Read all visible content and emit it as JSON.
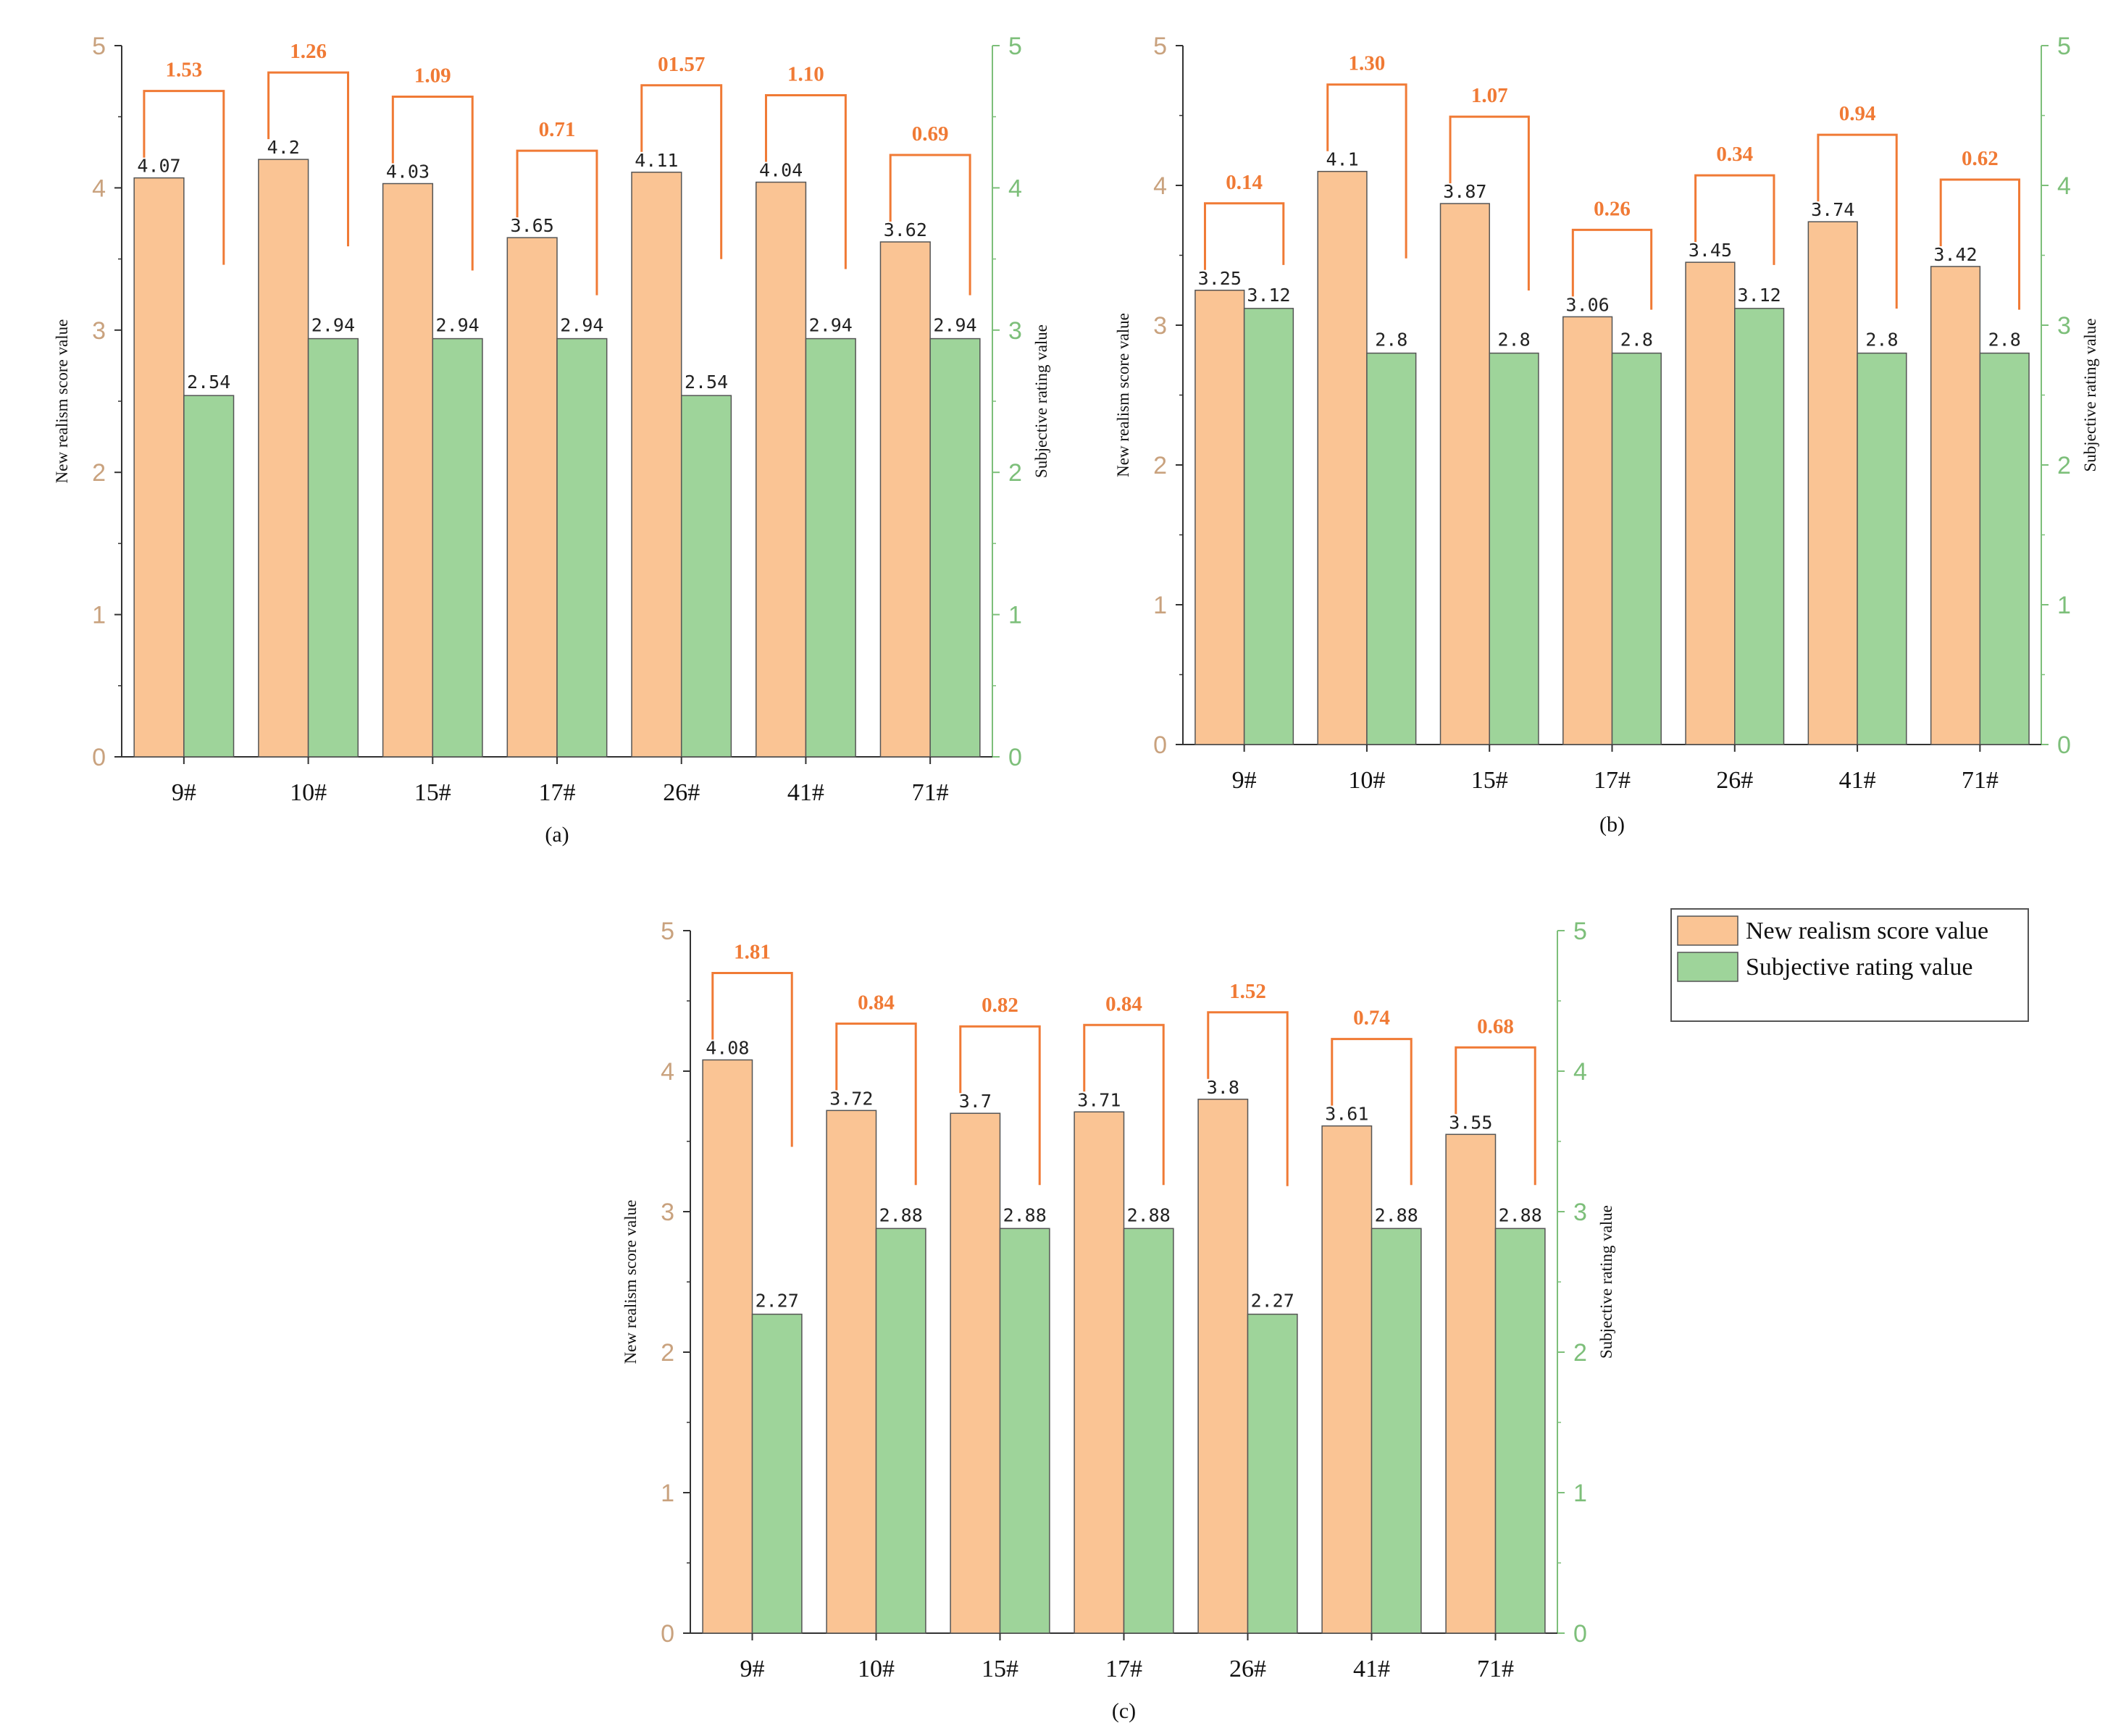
{
  "colors": {
    "realism_fill": "#FAC494",
    "subjective_fill": "#9ED49A",
    "bar_stroke": "#555555",
    "left_axis": "#C9A27E",
    "right_axis": "#7DBF7A",
    "bracket": "#F07A35",
    "axis_line": "#333333"
  },
  "legend": {
    "items": [
      {
        "label": "New realism score value"
      },
      {
        "label": "Subjective rating value"
      }
    ]
  },
  "chart_data": [
    {
      "type": "bar",
      "caption": "(a)",
      "categories": [
        "9#",
        "10#",
        "15#",
        "17#",
        "26#",
        "41#",
        "71#"
      ],
      "series": [
        {
          "name": "New realism score value",
          "values": [
            4.07,
            4.2,
            4.03,
            3.65,
            4.11,
            4.04,
            3.62
          ],
          "labels": [
            "4.07",
            "4.2",
            "4.03",
            "3.65",
            "4.11",
            "4.04",
            "3.62"
          ]
        },
        {
          "name": "Subjective rating value",
          "values": [
            2.54,
            2.94,
            2.94,
            2.94,
            2.54,
            2.94,
            2.94
          ],
          "labels": [
            "2.54",
            "2.94",
            "2.94",
            "2.94",
            "2.54",
            "2.94",
            "2.94"
          ]
        }
      ],
      "differences": [
        "1.53",
        "1.26",
        "1.09",
        "0.71",
        "01.57",
        "1.10",
        "0.69"
      ],
      "ylabel_left": "New realism score value",
      "ylabel_right": "Subjective rating value",
      "ylim": [
        0,
        5
      ],
      "yticks": [
        "0",
        "1",
        "2",
        "3",
        "4",
        "5"
      ]
    },
    {
      "type": "bar",
      "caption": "(b)",
      "categories": [
        "9#",
        "10#",
        "15#",
        "17#",
        "26#",
        "41#",
        "71#"
      ],
      "series": [
        {
          "name": "New realism score value",
          "values": [
            3.25,
            4.1,
            3.87,
            3.06,
            3.45,
            3.74,
            3.42
          ],
          "labels": [
            "3.25",
            "4.1",
            "3.87",
            "3.06",
            "3.45",
            "3.74",
            "3.42"
          ]
        },
        {
          "name": "Subjective rating value",
          "values": [
            3.12,
            2.8,
            2.8,
            2.8,
            3.12,
            2.8,
            2.8
          ],
          "labels": [
            "3.12",
            "2.8",
            "2.8",
            "2.8",
            "3.12",
            "2.8",
            "2.8"
          ]
        }
      ],
      "differences": [
        "0.14",
        "1.30",
        "1.07",
        "0.26",
        "0.34",
        "0.94",
        "0.62"
      ],
      "ylabel_left": "New realism score value",
      "ylabel_right": "Subjective rating value",
      "ylim": [
        0,
        5
      ],
      "yticks": [
        "0",
        "1",
        "2",
        "3",
        "4",
        "5"
      ]
    },
    {
      "type": "bar",
      "caption": "(c)",
      "categories": [
        "9#",
        "10#",
        "15#",
        "17#",
        "26#",
        "41#",
        "71#"
      ],
      "series": [
        {
          "name": "New realism score value",
          "values": [
            4.08,
            3.72,
            3.7,
            3.71,
            3.8,
            3.61,
            3.55
          ],
          "labels": [
            "4.08",
            "3.72",
            "3.7",
            "3.71",
            "3.8",
            "3.61",
            "3.55"
          ]
        },
        {
          "name": "Subjective rating value",
          "values": [
            2.27,
            2.88,
            2.88,
            2.88,
            2.27,
            2.88,
            2.88
          ],
          "labels": [
            "2.27",
            "2.88",
            "2.88",
            "2.88",
            "2.27",
            "2.88",
            "2.88"
          ]
        }
      ],
      "differences": [
        "1.81",
        "0.84",
        "0.82",
        "0.84",
        "1.52",
        "0.74",
        "0.68"
      ],
      "ylabel_left": "New realism score value",
      "ylabel_right": "Subjective rating value",
      "ylim": [
        0,
        5
      ],
      "yticks": [
        "0",
        "1",
        "2",
        "3",
        "4",
        "5"
      ]
    }
  ]
}
